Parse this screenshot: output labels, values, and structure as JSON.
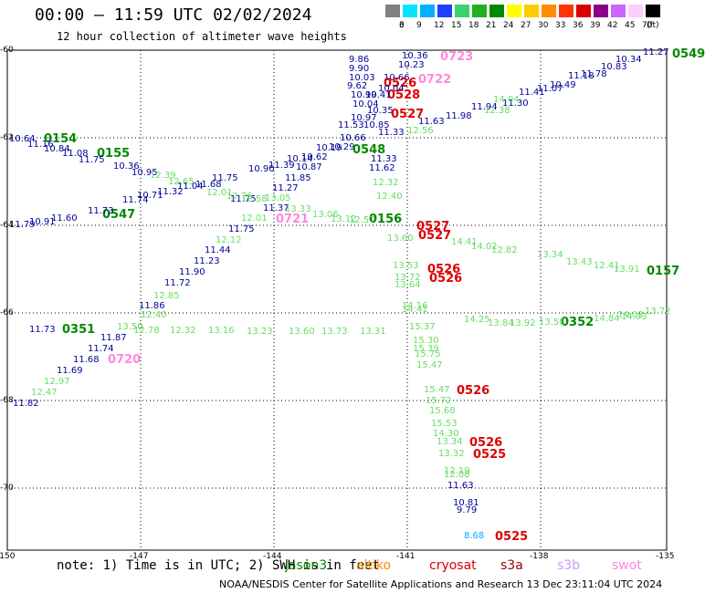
{
  "title": "00:00 — 11:59 UTC 02/02/2024",
  "subtitle": "12 hour collection of altimeter wave heights",
  "colorbar": {
    "unit": "(ft)",
    "labels": [
      "3",
      "6",
      "9",
      "12",
      "15",
      "18",
      "21",
      "24",
      "27",
      "30",
      "33",
      "36",
      "39",
      "42",
      "45",
      "70"
    ],
    "colors": [
      "#808080",
      "#00e5ff",
      "#00b0ff",
      "#1f3fff",
      "#3cd070",
      "#20b020",
      "#008800",
      "#ffff00",
      "#ffcc00",
      "#ff8c00",
      "#ff3300",
      "#dd0000",
      "#880088",
      "#cc66ff",
      "#ffccff",
      "#000000"
    ]
  },
  "axes": {
    "lat_labels": [
      "-60",
      "-62",
      "-64",
      "-66",
      "-68",
      "-70"
    ],
    "lon_labels": [
      "-150",
      "-147",
      "-144",
      "-141",
      "-138",
      "-135"
    ]
  },
  "track_labels": [
    {
      "text": "10.36",
      "color": "#000099"
    },
    {
      "text": "0723",
      "color": "#ff88dd"
    },
    {
      "text": "10.23",
      "color": "#000099"
    },
    {
      "text": "9.86",
      "color": "#000099"
    },
    {
      "text": "9.90",
      "color": "#000099"
    },
    {
      "text": "10.03",
      "color": "#000099"
    },
    {
      "text": "10.66",
      "color": "#000099"
    },
    {
      "text": "0526",
      "color": "#dd0000"
    },
    {
      "text": "0722",
      "color": "#ff88dd"
    },
    {
      "text": "9.62",
      "color": "#000099"
    },
    {
      "text": "10.04",
      "color": "#000099"
    },
    {
      "text": "0528",
      "color": "#dd0000"
    },
    {
      "text": "10.99",
      "color": "#000099"
    },
    {
      "text": "10.41",
      "color": "#000099"
    },
    {
      "text": "10.04",
      "color": "#000099"
    },
    {
      "text": "10.35",
      "color": "#000099"
    },
    {
      "text": "0527",
      "color": "#dd0000"
    },
    {
      "text": "10.97",
      "color": "#000099"
    },
    {
      "text": "11.53",
      "color": "#000099"
    },
    {
      "text": "10.85",
      "color": "#000099"
    },
    {
      "text": "11.33",
      "color": "#000099"
    },
    {
      "text": "10.66",
      "color": "#000099"
    },
    {
      "text": "10.29",
      "color": "#000099"
    },
    {
      "text": "10.19",
      "color": "#000099"
    },
    {
      "text": "0548",
      "color": "#008800"
    },
    {
      "text": "11.33",
      "color": "#000099"
    },
    {
      "text": "11.62",
      "color": "#000099"
    },
    {
      "text": "10.62",
      "color": "#000099"
    },
    {
      "text": "10.14",
      "color": "#000099"
    },
    {
      "text": "11.39",
      "color": "#000099"
    },
    {
      "text": "10.90",
      "color": "#000099"
    },
    {
      "text": "10.87",
      "color": "#000099"
    },
    {
      "text": "11.85",
      "color": "#000099"
    },
    {
      "text": "11.27",
      "color": "#000099"
    },
    {
      "text": "11.75",
      "color": "#000099"
    },
    {
      "text": "11.37",
      "color": "#000099"
    },
    {
      "text": "0721",
      "color": "#ff88dd"
    },
    {
      "text": "12.32",
      "color": "#66dd66"
    },
    {
      "text": "12.40",
      "color": "#66dd66"
    },
    {
      "text": "0156",
      "color": "#008800"
    },
    {
      "text": "0527",
      "color": "#dd0000"
    },
    {
      "text": "0527",
      "color": "#dd0000"
    },
    {
      "text": "13.60",
      "color": "#66dd66"
    },
    {
      "text": "14.41",
      "color": "#66dd66"
    },
    {
      "text": "14.02",
      "color": "#66dd66"
    },
    {
      "text": "12.82",
      "color": "#66dd66"
    },
    {
      "text": "13.34",
      "color": "#66dd66"
    },
    {
      "text": "13.43",
      "color": "#66dd66"
    },
    {
      "text": "12.41",
      "color": "#66dd66"
    },
    {
      "text": "13.91",
      "color": "#66dd66"
    },
    {
      "text": "0157",
      "color": "#008800"
    },
    {
      "text": "13.53",
      "color": "#66dd66"
    },
    {
      "text": "0526",
      "color": "#dd0000"
    },
    {
      "text": "13.72",
      "color": "#66dd66"
    },
    {
      "text": "0526",
      "color": "#dd0000"
    },
    {
      "text": "13.64",
      "color": "#66dd66"
    },
    {
      "text": "14.16",
      "color": "#66dd66"
    },
    {
      "text": "14.41",
      "color": "#66dd66"
    },
    {
      "text": "15.37",
      "color": "#66dd66"
    },
    {
      "text": "15.30",
      "color": "#66dd66"
    },
    {
      "text": "15.39",
      "color": "#66dd66"
    },
    {
      "text": "15.75",
      "color": "#66dd66"
    },
    {
      "text": "15.47",
      "color": "#66dd66"
    },
    {
      "text": "0352",
      "color": "#008800"
    },
    {
      "text": "14.08",
      "color": "#66dd66"
    },
    {
      "text": "13.72",
      "color": "#66dd66"
    },
    {
      "text": "15.47",
      "color": "#66dd66"
    },
    {
      "text": "0526",
      "color": "#dd0000"
    },
    {
      "text": "15.72",
      "color": "#66dd66"
    },
    {
      "text": "15.68",
      "color": "#66dd66"
    },
    {
      "text": "15.53",
      "color": "#66dd66"
    },
    {
      "text": "14.30",
      "color": "#66dd66"
    },
    {
      "text": "13.34",
      "color": "#66dd66"
    },
    {
      "text": "0526",
      "color": "#dd0000"
    },
    {
      "text": "13.32",
      "color": "#66dd66"
    },
    {
      "text": "0525",
      "color": "#dd0000"
    },
    {
      "text": "12.19",
      "color": "#66dd66"
    },
    {
      "text": "12.08",
      "color": "#66dd66"
    },
    {
      "text": "11.63",
      "color": "#000099"
    },
    {
      "text": "10.81",
      "color": "#000099"
    },
    {
      "text": "9.79",
      "color": "#000099"
    },
    {
      "text": "8.68",
      "color": "#00aaff"
    },
    {
      "text": "0525",
      "color": "#dd0000"
    },
    {
      "text": "10.64",
      "color": "#000099"
    },
    {
      "text": "0154",
      "color": "#008800"
    },
    {
      "text": "11.16",
      "color": "#000099"
    },
    {
      "text": "10.84",
      "color": "#000099"
    },
    {
      "text": "11.08",
      "color": "#000099"
    },
    {
      "text": "0155",
      "color": "#008800"
    },
    {
      "text": "11.75",
      "color": "#000099"
    },
    {
      "text": "10.36",
      "color": "#000099"
    },
    {
      "text": "10.95",
      "color": "#000099"
    },
    {
      "text": "12.39",
      "color": "#66dd66"
    },
    {
      "text": "12.65",
      "color": "#66dd66"
    },
    {
      "text": "11.75",
      "color": "#000099"
    },
    {
      "text": "11.68",
      "color": "#000099"
    },
    {
      "text": "11.04",
      "color": "#000099"
    },
    {
      "text": "11.32",
      "color": "#000099"
    },
    {
      "text": "10.71",
      "color": "#000099"
    },
    {
      "text": "12.01",
      "color": "#66dd66"
    },
    {
      "text": "12.76",
      "color": "#66dd66"
    },
    {
      "text": "12.58",
      "color": "#66dd66"
    },
    {
      "text": "13.05",
      "color": "#66dd66"
    },
    {
      "text": "13.33",
      "color": "#66dd66"
    },
    {
      "text": "13.06",
      "color": "#66dd66"
    },
    {
      "text": "13.12",
      "color": "#66dd66"
    },
    {
      "text": "12.57",
      "color": "#66dd66"
    },
    {
      "text": "11.74",
      "color": "#000099"
    },
    {
      "text": "0547",
      "color": "#008800"
    },
    {
      "text": "11.73",
      "color": "#000099"
    },
    {
      "text": "11.79",
      "color": "#000099"
    },
    {
      "text": "10.91",
      "color": "#000099"
    },
    {
      "text": "11.60",
      "color": "#000099"
    },
    {
      "text": "12.01",
      "color": "#66dd66"
    },
    {
      "text": "11.75",
      "color": "#000099"
    },
    {
      "text": "12.12",
      "color": "#66dd66"
    },
    {
      "text": "11.44",
      "color": "#000099"
    },
    {
      "text": "11.23",
      "color": "#000099"
    },
    {
      "text": "11.90",
      "color": "#000099"
    },
    {
      "text": "11.72",
      "color": "#000099"
    },
    {
      "text": "12.85",
      "color": "#66dd66"
    },
    {
      "text": "11.86",
      "color": "#000099"
    },
    {
      "text": "12.40",
      "color": "#66dd66"
    },
    {
      "text": "11.73",
      "color": "#000099"
    },
    {
      "text": "0351",
      "color": "#008800"
    },
    {
      "text": "13.50",
      "color": "#66dd66"
    },
    {
      "text": "11.87",
      "color": "#000099"
    },
    {
      "text": "12.78",
      "color": "#66dd66"
    },
    {
      "text": "12.32",
      "color": "#66dd66"
    },
    {
      "text": "13.16",
      "color": "#66dd66"
    },
    {
      "text": "13.23",
      "color": "#66dd66"
    },
    {
      "text": "13.60",
      "color": "#66dd66"
    },
    {
      "text": "13.73",
      "color": "#66dd66"
    },
    {
      "text": "13.31",
      "color": "#66dd66"
    },
    {
      "text": "11.74",
      "color": "#000099"
    },
    {
      "text": "11.68",
      "color": "#000099"
    },
    {
      "text": "0720",
      "color": "#ff88dd"
    },
    {
      "text": "11.69",
      "color": "#000099"
    },
    {
      "text": "12.97",
      "color": "#66dd66"
    },
    {
      "text": "12.47",
      "color": "#66dd66"
    },
    {
      "text": "11.82",
      "color": "#000099"
    },
    {
      "text": "11.27",
      "color": "#000099"
    },
    {
      "text": "0549",
      "color": "#008800"
    },
    {
      "text": "10.34",
      "color": "#000099"
    },
    {
      "text": "10.83",
      "color": "#000099"
    },
    {
      "text": "11.78",
      "color": "#000099"
    },
    {
      "text": "11.18",
      "color": "#000099"
    },
    {
      "text": "10.49",
      "color": "#000099"
    },
    {
      "text": "11.07",
      "color": "#000099"
    },
    {
      "text": "11.41",
      "color": "#000099"
    },
    {
      "text": "11.30",
      "color": "#000099"
    },
    {
      "text": "11.94",
      "color": "#000099"
    },
    {
      "text": "11.98",
      "color": "#000099"
    },
    {
      "text": "11.63",
      "color": "#000099"
    },
    {
      "text": "12.56",
      "color": "#66dd66"
    },
    {
      "text": "12.38",
      "color": "#66dd66"
    },
    {
      "text": "14.04",
      "color": "#66dd66"
    },
    {
      "text": "14.25",
      "color": "#66dd66"
    },
    {
      "text": "13.84",
      "color": "#66dd66"
    },
    {
      "text": "13.92",
      "color": "#66dd66"
    },
    {
      "text": "13.58",
      "color": "#66dd66"
    },
    {
      "text": "14.84",
      "color": "#66dd66"
    },
    {
      "text": "14.03",
      "color": "#66dd66"
    }
  ],
  "note": "note: 1) Time is in UTC; 2) SWH is in feet",
  "satellites": [
    {
      "name": "jason3",
      "color": "#008800"
    },
    {
      "name": "altiko",
      "color": "#ff8c00"
    },
    {
      "name": "cryosat",
      "color": "#dd0000"
    },
    {
      "name": "s3a",
      "color": "#990000"
    },
    {
      "name": "s3b",
      "color": "#cc99ff"
    },
    {
      "name": "swot",
      "color": "#ff88dd"
    }
  ],
  "footer": "NOAA/NESDIS Center for Satellite Applications and Research    13 Dec 23:11:04 UTC 2024"
}
